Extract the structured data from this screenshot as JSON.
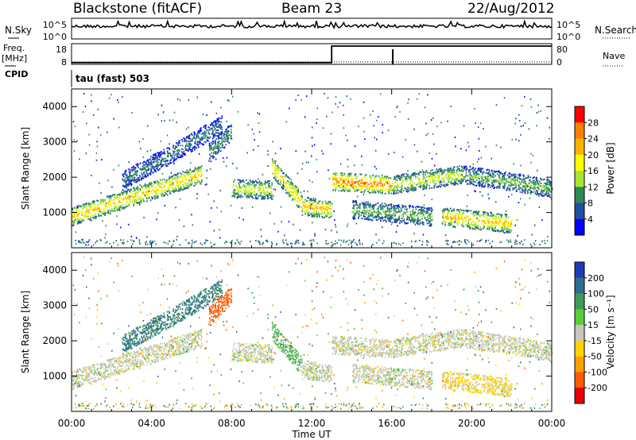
{
  "header": {
    "site": "Blackstone (fitACF)",
    "beam": "Beam 23",
    "date": "22/Aug/2012"
  },
  "noise_panel": {
    "left_label": "N.Sky",
    "left_ticks": [
      "10^5",
      "10^0"
    ],
    "right_label": "N.Search",
    "right_ticks": [
      "10^5",
      "10^0"
    ]
  },
  "freq_panel": {
    "left_label_top": "Freq.",
    "left_label_unit": "[MHz]",
    "left_ticks": [
      "18",
      "8"
    ],
    "cpid_label": "CPID",
    "right_label": "Nave",
    "right_ticks": [
      "80",
      "0"
    ],
    "mode_text": "tau (fast) 503"
  },
  "axes": {
    "ylabel": "Slant Range [km]",
    "yticks": [
      "1000",
      "2000",
      "3000",
      "4000"
    ],
    "xlabel": "Time UT",
    "xticks": [
      "00:00",
      "04:00",
      "08:00",
      "12:00",
      "16:00",
      "20:00",
      "00:00"
    ]
  },
  "power_scale": {
    "title": "Power [dB]",
    "ticks": [
      "28",
      "24",
      "20",
      "16",
      "12",
      "8",
      "4"
    ],
    "colors": [
      "#ff0000",
      "#ff7f00",
      "#ffb300",
      "#ffff00",
      "#a6e632",
      "#2e8b57",
      "#1f4f9f",
      "#0000ff"
    ]
  },
  "velocity_scale": {
    "title": "Velocity [m s⁻¹]",
    "ticks": [
      "200",
      "100",
      "50",
      "15",
      "-15",
      "-50",
      "-100",
      "-200"
    ],
    "colors": [
      "#1e3cb4",
      "#2e6e8e",
      "#3f9b5a",
      "#5acd3c",
      "#c8c8c0",
      "#ffd200",
      "#ffa000",
      "#ff5a00",
      "#e60000"
    ]
  },
  "chart_data": {
    "type": "heatmap",
    "x_range_hours": [
      0,
      24
    ],
    "y_range_km": [
      0,
      4500
    ],
    "freq_mhz": {
      "before": 10,
      "after": 18,
      "switch_hour": 13
    },
    "scatter_bands": [
      {
        "t_start": 0.0,
        "t_end": 6.5,
        "r_start": 900,
        "r_end": 2100,
        "power_db": 20,
        "velocity": 0
      },
      {
        "t_start": 2.5,
        "t_end": 7.5,
        "r_start": 1900,
        "r_end": 3500,
        "power_db": 8,
        "velocity": 80
      },
      {
        "t_start": 6.8,
        "t_end": 8.0,
        "r_start": 2700,
        "r_end": 3300,
        "power_db": 10,
        "velocity": -120
      },
      {
        "t_start": 8.0,
        "t_end": 10.0,
        "r_start": 1700,
        "r_end": 1650,
        "power_db": 16,
        "velocity": 0
      },
      {
        "t_start": 10.0,
        "t_end": 11.5,
        "r_start": 2300,
        "r_end": 1300,
        "power_db": 20,
        "velocity": 30
      },
      {
        "t_start": 11.5,
        "t_end": 13.0,
        "r_start": 1200,
        "r_end": 1100,
        "power_db": 20,
        "velocity": 0
      },
      {
        "t_start": 13.0,
        "t_end": 16.0,
        "r_start": 1900,
        "r_end": 1800,
        "power_db": 24,
        "velocity": 0
      },
      {
        "t_start": 16.0,
        "t_end": 19.5,
        "r_start": 1800,
        "r_end": 2100,
        "power_db": 16,
        "velocity": 0
      },
      {
        "t_start": 19.5,
        "t_end": 24.0,
        "r_start": 2100,
        "r_end": 1700,
        "power_db": 12,
        "velocity": 0
      },
      {
        "t_start": 14.0,
        "t_end": 18.0,
        "r_start": 1100,
        "r_end": 900,
        "power_db": 12,
        "velocity": 0
      },
      {
        "t_start": 18.5,
        "t_end": 22.0,
        "r_start": 900,
        "r_end": 700,
        "power_db": 20,
        "velocity": -20
      }
    ]
  }
}
